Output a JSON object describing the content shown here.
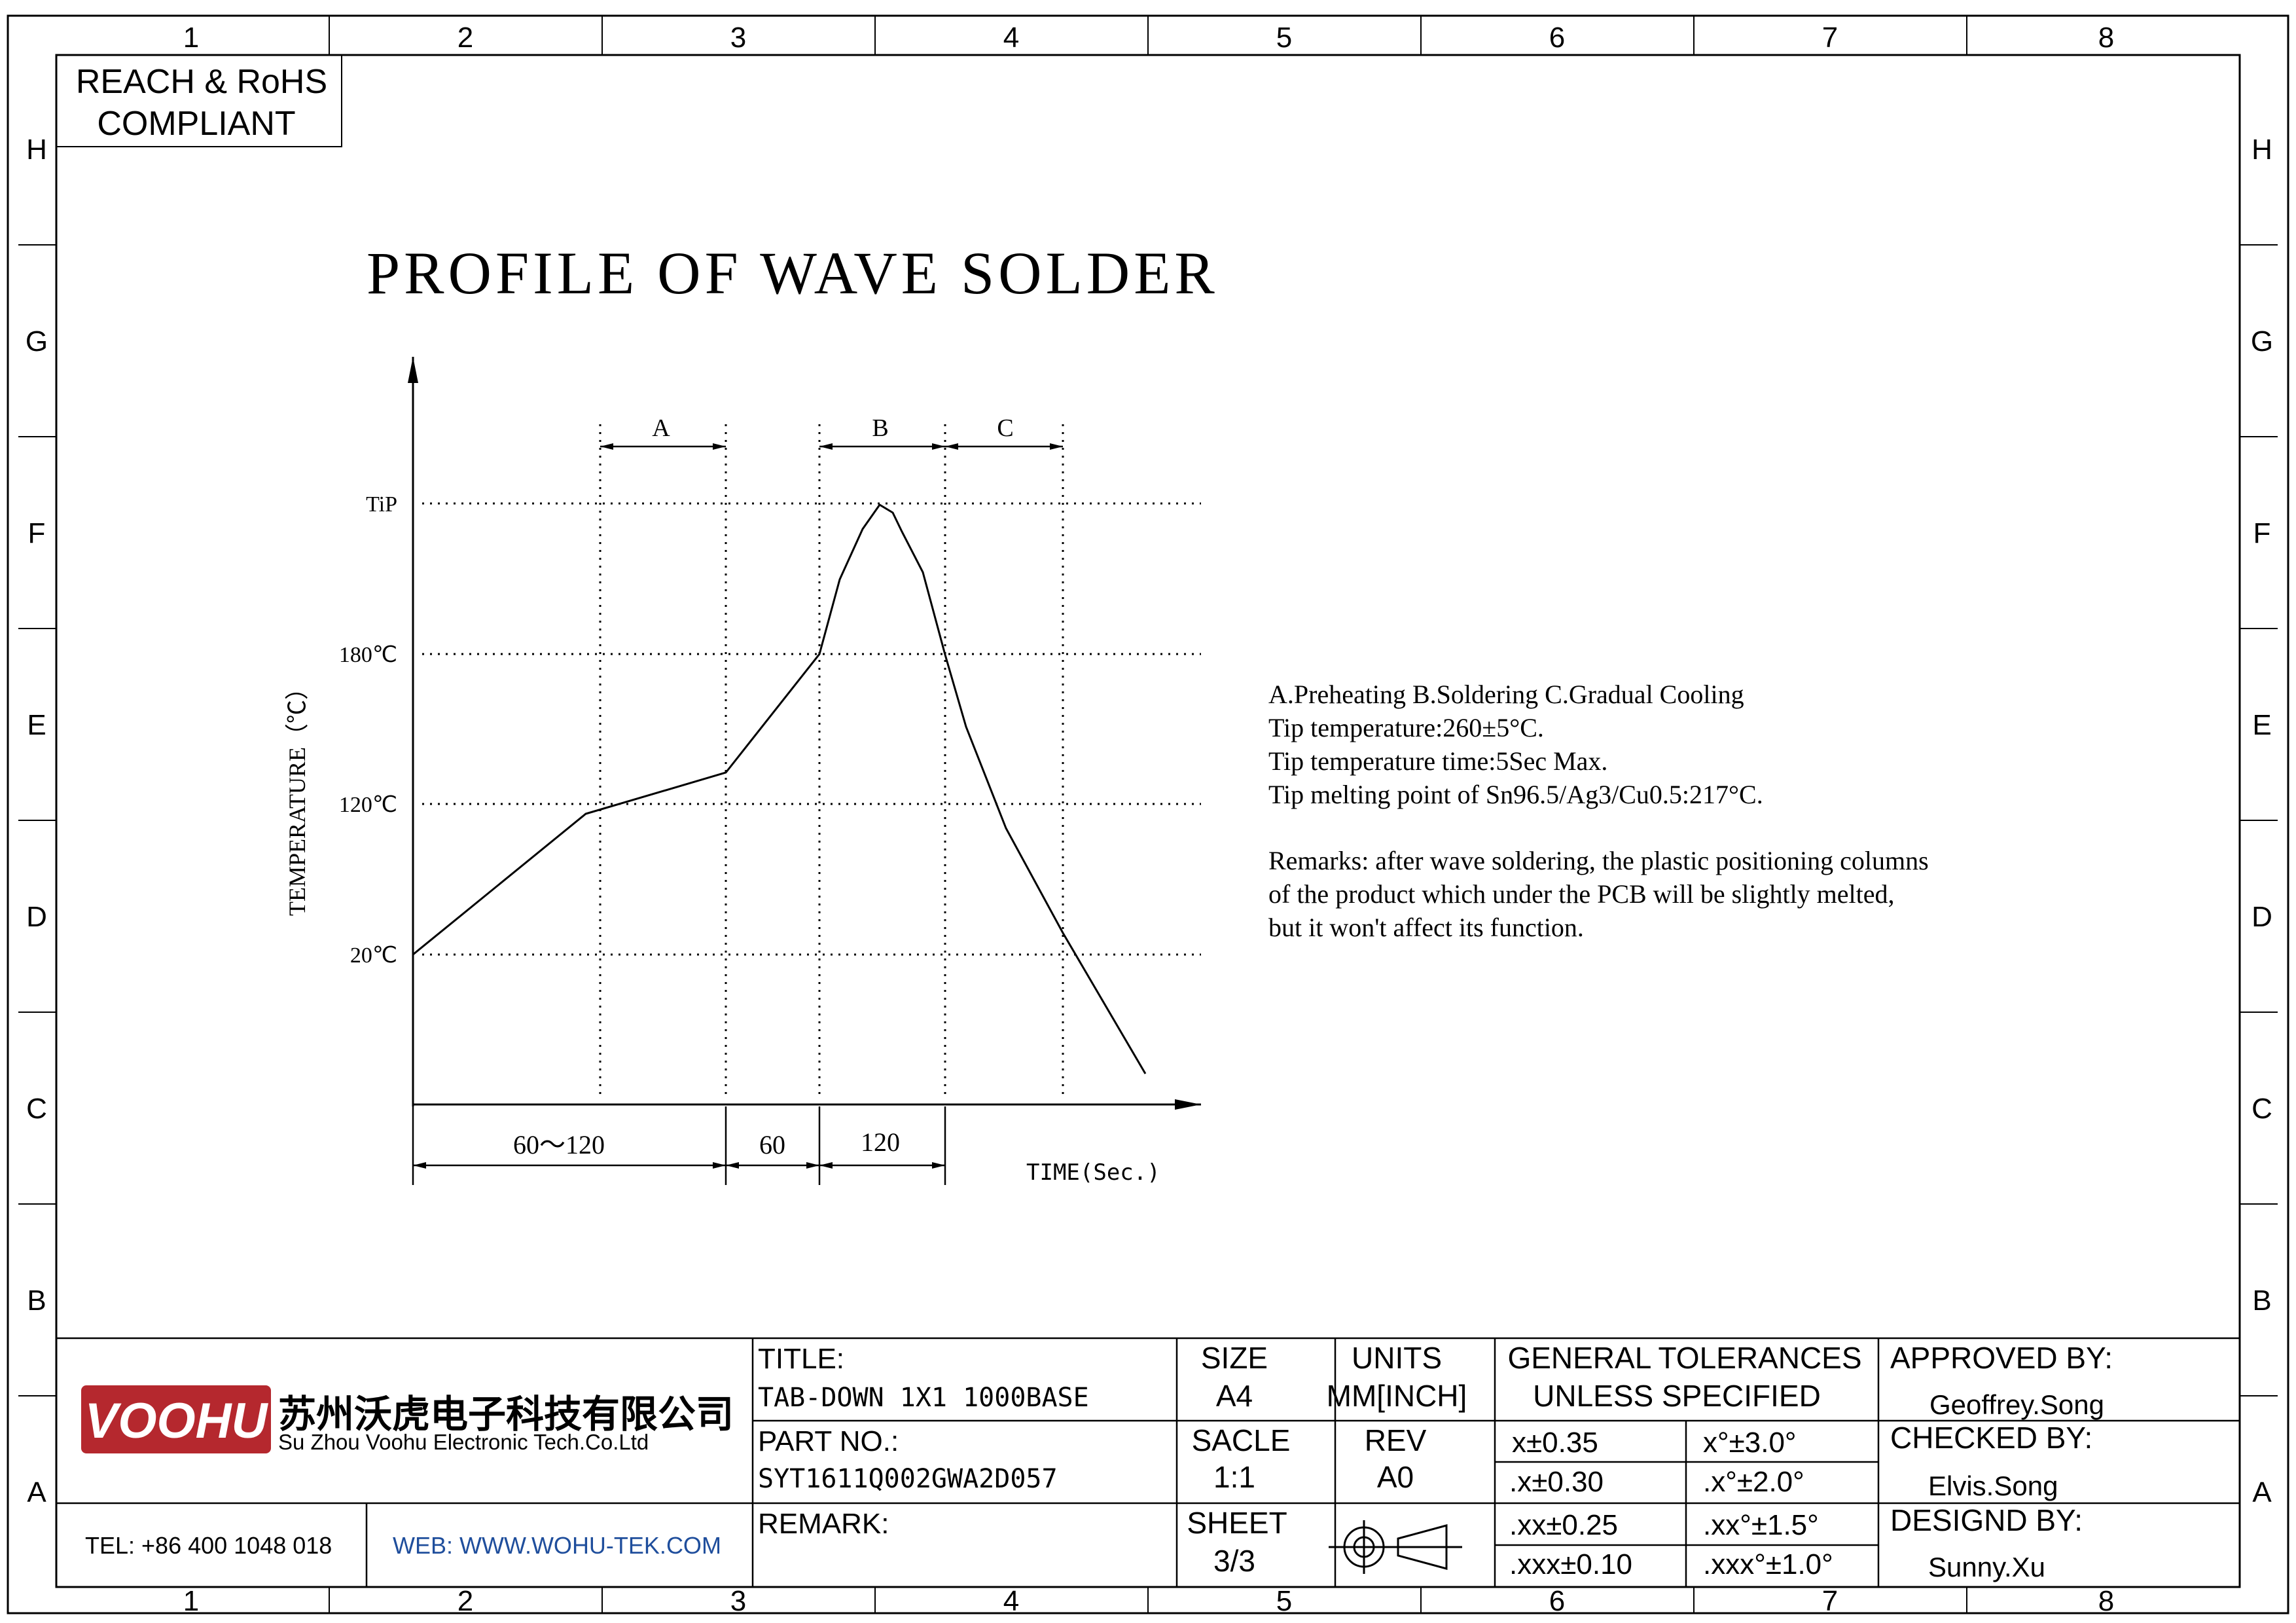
{
  "frame": {
    "top_cols": [
      "1",
      "2",
      "3",
      "4",
      "5",
      "6",
      "7",
      "8"
    ],
    "bottom_cols": [
      "1",
      "2",
      "3",
      "4",
      "5",
      "6",
      "7",
      "8"
    ],
    "rows": [
      "H",
      "G",
      "F",
      "E",
      "D",
      "C",
      "B",
      "A"
    ]
  },
  "compliance": {
    "line1": "REACH & RoHS",
    "line2": "COMPLIANT"
  },
  "drawing": {
    "title": "PROFILE OF WAVE SOLDER",
    "y_axis_label": "TEMPERATURE（℃）",
    "x_axis_label": "TIME(Sec.)",
    "temp_levels": [
      {
        "label": "TiP"
      },
      {
        "label": "180℃"
      },
      {
        "label": "120℃"
      },
      {
        "label": "20℃"
      }
    ],
    "zones": [
      {
        "label": "A"
      },
      {
        "label": "B"
      },
      {
        "label": "C"
      }
    ],
    "durations": [
      {
        "label": "60～120"
      },
      {
        "label": "60"
      },
      {
        "label": "120"
      }
    ],
    "line_color": "#000000"
  },
  "notes": {
    "lines": [
      "A.Preheating  B.Soldering  C.Gradual Cooling",
      "Tip temperature:260±5°C.",
      "Tip temperature time:5Sec Max.",
      "Tip melting point of Sn96.5/Ag3/Cu0.5:217°C."
    ],
    "remarks": [
      "Remarks: after wave soldering, the plastic positioning columns",
      "of the product  which under the PCB will be slightly melted,",
      "but it won't affect its function."
    ]
  },
  "company": {
    "logo_text": "VOOHU",
    "name_cn": "苏州沃虎电子科技有限公司",
    "name_en": "Su Zhou Voohu Electronic Tech.Co.Ltd",
    "tel": "TEL: +86 400 1048 018",
    "web": "WEB: WWW.WOHU-TEK.COM",
    "brand_color": "#b5282e",
    "web_color": "#1f4e9c"
  },
  "title_block": {
    "title_label": "TITLE:",
    "title_value": "TAB-DOWN 1X1 1000BASE",
    "part_label": "PART NO.:",
    "part_value": "SYT1611Q002GWA2D057",
    "remark_label": "REMARK:",
    "size_label": "SIZE",
    "size_value": "A4",
    "units_label": "UNITS",
    "units_value": "MM[INCH]",
    "scale_label": "SACLE",
    "scale_value": "1:1",
    "rev_label": "REV",
    "rev_value": "A0",
    "sheet_label": "SHEET",
    "sheet_value": "3/3",
    "tol_line1": "GENERAL TOLERANCES",
    "tol_line2": "UNLESS SPECIFIED",
    "tolerances": [
      {
        "linear": "x±0.35",
        "angular": "x°±3.0°"
      },
      {
        "linear": ".x±0.30",
        "angular": ".x°±2.0°"
      },
      {
        "linear": ".xx±0.25",
        "angular": ".xx°±1.5°"
      },
      {
        "linear": ".xxx±0.10",
        "angular": ".xxx°±1.0°"
      }
    ],
    "approved_label": "APPROVED BY:",
    "approved_value": "Geoffrey.Song",
    "checked_label": "CHECKED BY:",
    "checked_value": "Elvis.Song",
    "designed_label": "DESIGND BY:",
    "designed_value": "Sunny.Xu"
  }
}
